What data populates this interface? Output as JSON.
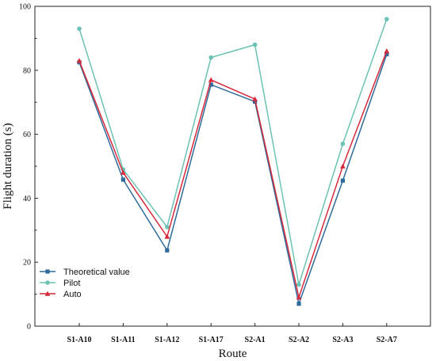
{
  "chart_data": {
    "type": "line",
    "title": "",
    "xlabel": "Route",
    "ylabel": "Flight duration (s)",
    "categories": [
      "S1-A10",
      "S1-A11",
      "S1-A12",
      "S1-A17",
      "S2-A1",
      "S2-A2",
      "S2-A3",
      "S2-A7"
    ],
    "ylim": [
      0,
      100
    ],
    "yticks": [
      0,
      20,
      40,
      60,
      80,
      100
    ],
    "grid": false,
    "legend_position": "bottom-left",
    "series": [
      {
        "name": "Theoretical value",
        "color": "#2e6b9a",
        "marker": "square",
        "values": [
          82.5,
          45.8,
          23.7,
          75.5,
          70.2,
          7.0,
          45.5,
          85.0
        ]
      },
      {
        "name": "Pilot",
        "color": "#6cc2b4",
        "marker": "circle",
        "values": [
          93.0,
          49.0,
          31.0,
          84.0,
          88.0,
          13.0,
          57.0,
          96.0
        ]
      },
      {
        "name": "Auto",
        "color": "#d42a3c",
        "marker": "triangle",
        "values": [
          83.0,
          48.0,
          28.0,
          77.0,
          71.0,
          9.0,
          50.0,
          86.0
        ]
      }
    ]
  }
}
